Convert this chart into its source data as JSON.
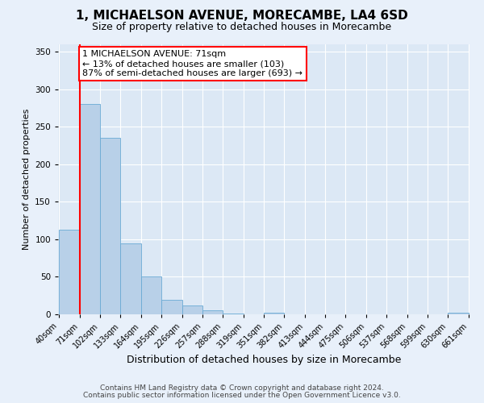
{
  "title": "1, MICHAELSON AVENUE, MORECAMBE, LA4 6SD",
  "subtitle": "Size of property relative to detached houses in Morecambe",
  "xlabel": "Distribution of detached houses by size in Morecambe",
  "ylabel": "Number of detached properties",
  "bin_labels": [
    "40sqm",
    "71sqm",
    "102sqm",
    "133sqm",
    "164sqm",
    "195sqm",
    "226sqm",
    "257sqm",
    "288sqm",
    "319sqm",
    "351sqm",
    "382sqm",
    "413sqm",
    "444sqm",
    "475sqm",
    "506sqm",
    "537sqm",
    "568sqm",
    "599sqm",
    "630sqm",
    "661sqm"
  ],
  "bar_values": [
    113,
    280,
    235,
    95,
    50,
    19,
    12,
    5,
    1,
    0,
    2,
    0,
    0,
    0,
    0,
    0,
    0,
    0,
    0,
    2,
    0
  ],
  "bar_color": "#b8d0e8",
  "bar_edge_color": "#6aaad4",
  "property_line_index": 1,
  "property_line_color": "red",
  "annotation_title": "1 MICHAELSON AVENUE: 71sqm",
  "annotation_line1": "← 13% of detached houses are smaller (103)",
  "annotation_line2": "87% of semi-detached houses are larger (693) →",
  "annotation_box_color": "white",
  "annotation_border_color": "red",
  "ylim": [
    0,
    360
  ],
  "yticks": [
    0,
    50,
    100,
    150,
    200,
    250,
    300,
    350
  ],
  "footer_line1": "Contains HM Land Registry data © Crown copyright and database right 2024.",
  "footer_line2": "Contains public sector information licensed under the Open Government Licence v3.0.",
  "background_color": "#e8f0fa",
  "plot_background": "#dce8f5",
  "grid_color": "#ffffff",
  "title_fontsize": 11,
  "subtitle_fontsize": 9,
  "xlabel_fontsize": 9,
  "ylabel_fontsize": 8,
  "tick_fontsize": 7,
  "footer_fontsize": 6.5,
  "annotation_fontsize": 8
}
